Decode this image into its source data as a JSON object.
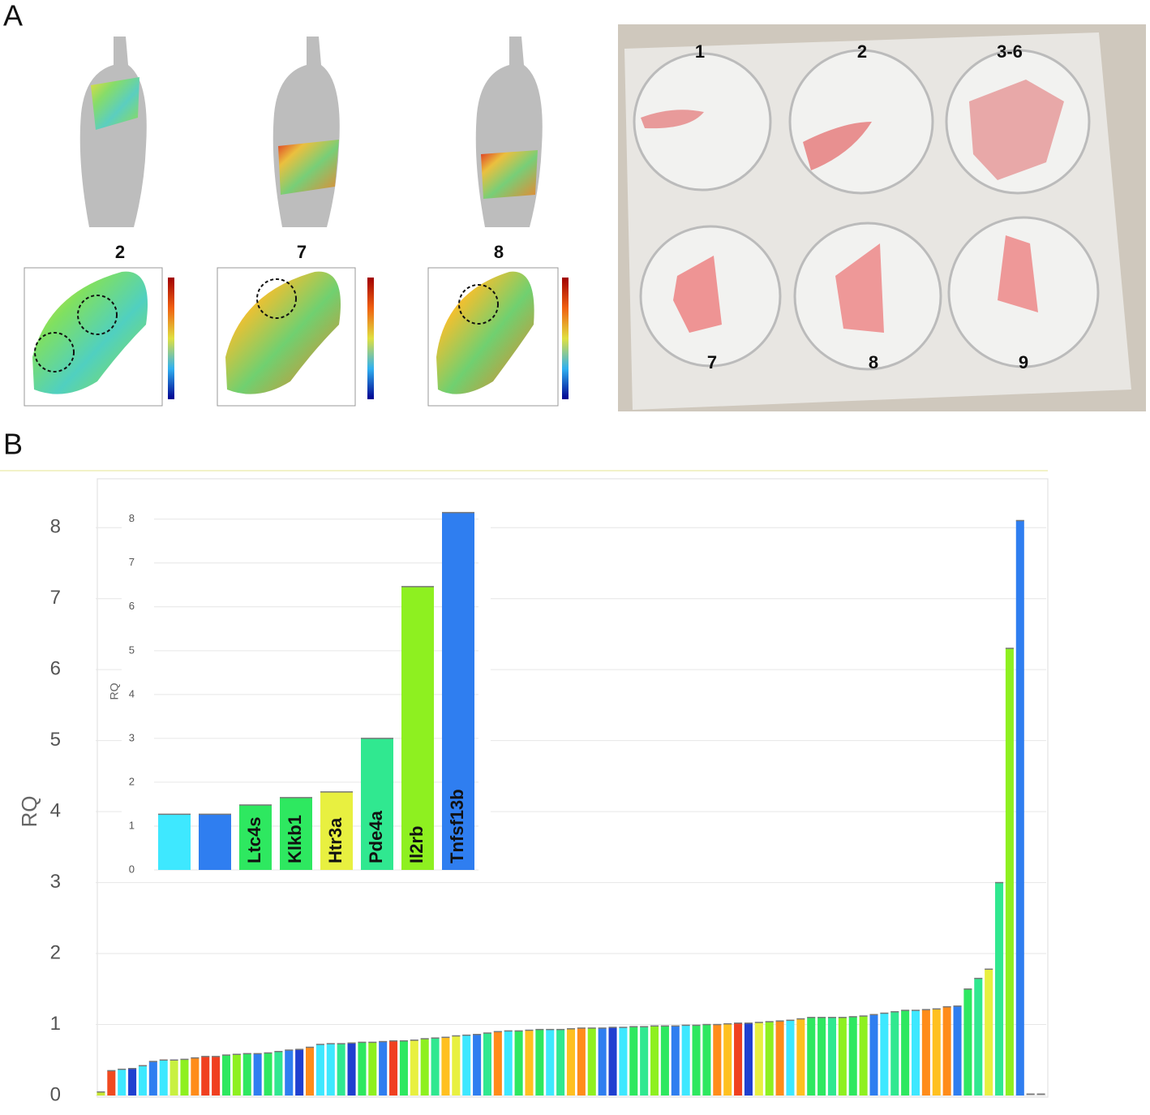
{
  "panel_a": {
    "label": "A",
    "models": [
      "2",
      "7",
      "8"
    ],
    "wells": [
      "1",
      "2",
      "3-6",
      "7",
      "8",
      "9"
    ]
  },
  "panel_b_label": "B",
  "chart_data": [
    {
      "type": "bar",
      "y_label": "RQ",
      "values": [
        0.05,
        0.35,
        0.37,
        0.38,
        0.42,
        0.48,
        0.5,
        0.5,
        0.51,
        0.53,
        0.55,
        0.55,
        0.57,
        0.58,
        0.59,
        0.59,
        0.6,
        0.62,
        0.64,
        0.65,
        0.68,
        0.72,
        0.73,
        0.73,
        0.74,
        0.75,
        0.75,
        0.76,
        0.77,
        0.77,
        0.78,
        0.8,
        0.81,
        0.82,
        0.84,
        0.85,
        0.86,
        0.88,
        0.9,
        0.91,
        0.91,
        0.92,
        0.93,
        0.93,
        0.93,
        0.94,
        0.95,
        0.95,
        0.95,
        0.96,
        0.96,
        0.97,
        0.97,
        0.98,
        0.98,
        0.98,
        0.99,
        0.99,
        1.0,
        1.0,
        1.01,
        1.02,
        1.02,
        1.03,
        1.04,
        1.05,
        1.06,
        1.08,
        1.1,
        1.1,
        1.1,
        1.1,
        1.11,
        1.12,
        1.14,
        1.16,
        1.18,
        1.2,
        1.2,
        1.21,
        1.22,
        1.25,
        1.26,
        1.5,
        1.65,
        1.78,
        3.0,
        6.3,
        8.1,
        0.02,
        0.02
      ],
      "colors": [
        "#c8e830",
        "#f04a20",
        "#3ee8ff",
        "#2040d0",
        "#3ee8ff",
        "#2f7ef0",
        "#3ee8ff",
        "#c8f040",
        "#8ef020",
        "#ff8c1a",
        "#f04020",
        "#f04020",
        "#2ee860",
        "#8ef020",
        "#2ee860",
        "#2f7ef0",
        "#2ee860",
        "#30e890",
        "#2f7ef0",
        "#2040d0",
        "#ff8c1a",
        "#3ee8ff",
        "#3ee8ff",
        "#30e890",
        "#2040d0",
        "#2ee860",
        "#8ef020",
        "#2f7ef0",
        "#f04020",
        "#2ee860",
        "#e8f040",
        "#8ef020",
        "#30e890",
        "#ffc020",
        "#e8f040",
        "#3ee8ff",
        "#2f7ef0",
        "#30e890",
        "#ff8c1a",
        "#3ee8ff",
        "#2ee860",
        "#ffc020",
        "#2ee860",
        "#3ee8ff",
        "#30e890",
        "#ffc020",
        "#ff8c1a",
        "#8ef020",
        "#2f7ef0",
        "#2040d0",
        "#3ee8ff",
        "#2ee860",
        "#30e890",
        "#8ef020",
        "#2ee860",
        "#2f7ef0",
        "#3ee8ff",
        "#2ee860",
        "#2ee860",
        "#ff8c1a",
        "#ffc020",
        "#f04020",
        "#2040d0",
        "#e8f040",
        "#8ef020",
        "#ff8c1a",
        "#3ee8ff",
        "#ffc020",
        "#2ee860",
        "#2ee860",
        "#30e890",
        "#8ef020",
        "#2ee860",
        "#8ef020",
        "#2f7ef0",
        "#3ee8ff",
        "#30e890",
        "#2ee860",
        "#3ee8ff",
        "#ff8c1a",
        "#ffc020",
        "#ff8c1a",
        "#2f7ef0",
        "#2ee860",
        "#30e890",
        "#e8f040",
        "#30e890",
        "#8ef020",
        "#2f7ef0",
        "#cccccc",
        "#cccccc"
      ],
      "ylim": [
        0,
        8.7
      ],
      "yticks": [
        0,
        1,
        2,
        3,
        4,
        5,
        6,
        7,
        8
      ],
      "grid": true
    },
    {
      "type": "bar",
      "y_label": "RQ",
      "categories": [
        null,
        null,
        "Ltc4s",
        "Klkb1",
        "Htr3a",
        "Pde4a",
        "Il2rb",
        "Tnfsf13b"
      ],
      "values": [
        1.27,
        1.27,
        1.48,
        1.65,
        1.78,
        3.0,
        6.46,
        8.15
      ],
      "colors": [
        "#3ee8ff",
        "#2f7ef0",
        "#2ee860",
        "#2ee860",
        "#e8f040",
        "#30e890",
        "#8ef020",
        "#2f7ef0"
      ],
      "ylim": [
        0,
        8.55
      ],
      "yticks": [
        0,
        1,
        2,
        3,
        4,
        5,
        6,
        7,
        8
      ],
      "grid": true
    }
  ]
}
